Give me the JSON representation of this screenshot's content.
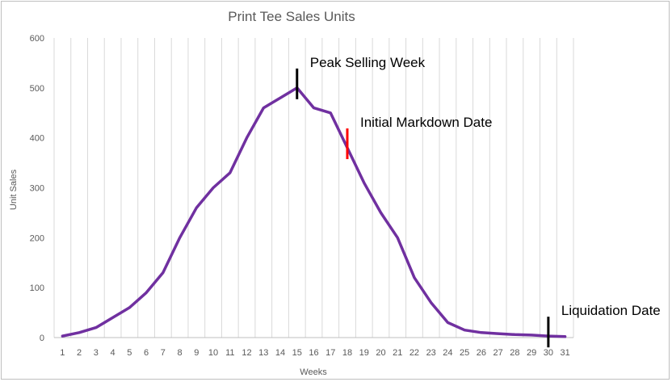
{
  "chart_data": {
    "type": "line",
    "title": "Print Tee Sales Units",
    "xlabel": "Weeks",
    "ylabel": "Unit Sales",
    "ylim": [
      0,
      600
    ],
    "y_ticks": [
      "0",
      "100",
      "200",
      "300",
      "400",
      "500",
      "600"
    ],
    "grid": "vertical",
    "categories": [
      "1",
      "2",
      "3",
      "4",
      "5",
      "6",
      "7",
      "8",
      "9",
      "10",
      "11",
      "12",
      "13",
      "14",
      "15",
      "16",
      "17",
      "18",
      "19",
      "20",
      "21",
      "22",
      "23",
      "24",
      "25",
      "26",
      "27",
      "28",
      "29",
      "30",
      "31"
    ],
    "series": [
      {
        "values": [
          3,
          10,
          20,
          40,
          60,
          90,
          130,
          200,
          260,
          300,
          330,
          400,
          460,
          480,
          500,
          460,
          450,
          380,
          310,
          250,
          200,
          120,
          70,
          30,
          15,
          10,
          8,
          6,
          5,
          3,
          2
        ],
        "color": "#7030a0"
      }
    ],
    "annotations": [
      {
        "text": "Peak Selling Week",
        "week": 15,
        "color": "#000000"
      },
      {
        "text": "Initial Markdown Date",
        "week": 18,
        "color": "#ff0000"
      },
      {
        "text": "Liquidation Date",
        "week": 30,
        "color": "#000000"
      }
    ]
  }
}
